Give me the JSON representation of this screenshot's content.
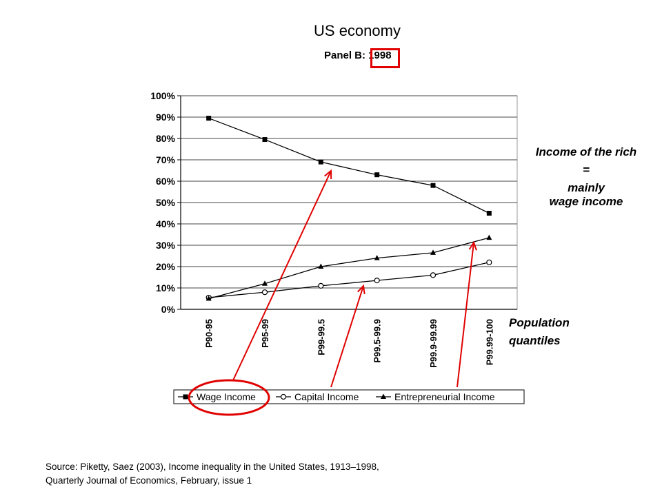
{
  "slide": {
    "title": "US economy",
    "panel_title": "Panel B: 1998",
    "annotation_rich": [
      "Income of the rich",
      "=",
      "mainly",
      "wage income"
    ],
    "annotation_pop": [
      "Population",
      "quantiles"
    ],
    "source_line1": "Source: Piketty, Saez (2003), Income inequality in the United States, 1913–1998,",
    "source_line2": "Quarterly Journal of Economics, February, issue 1",
    "highlight_color": "#e00000"
  },
  "chart_data": {
    "type": "line",
    "title": "Panel B: 1998",
    "categories": [
      "P90-95",
      "P95-99",
      "P99-99.5",
      "P99.5-99.9",
      "P99.9-99.99",
      "P99.99-100"
    ],
    "y_ticks": [
      "0%",
      "10%",
      "20%",
      "30%",
      "40%",
      "50%",
      "60%",
      "70%",
      "80%",
      "90%",
      "100%"
    ],
    "ylim": [
      0,
      100
    ],
    "grid": true,
    "legend_position": "bottom",
    "series": [
      {
        "name": "Wage Income",
        "marker": "square",
        "values": [
          89.5,
          79.5,
          69,
          63,
          58,
          45
        ]
      },
      {
        "name": "Capital Income",
        "marker": "circle-open",
        "values": [
          5.5,
          8,
          11,
          13.5,
          16,
          22
        ]
      },
      {
        "name": "Entrepreneurial Income",
        "marker": "triangle",
        "values": [
          5,
          12,
          20,
          24,
          26.5,
          33.5
        ]
      }
    ]
  }
}
